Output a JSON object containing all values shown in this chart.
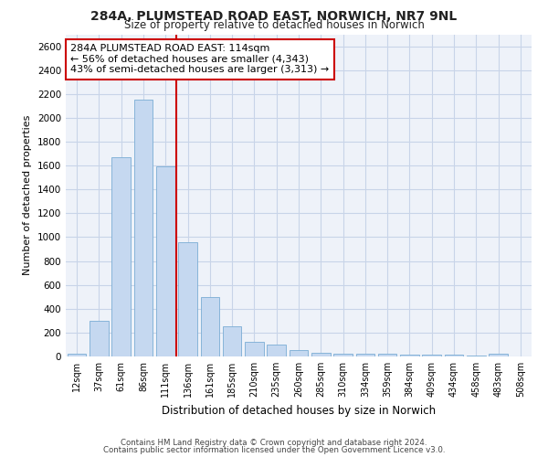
{
  "title1": "284A, PLUMSTEAD ROAD EAST, NORWICH, NR7 9NL",
  "title2": "Size of property relative to detached houses in Norwich",
  "xlabel": "Distribution of detached houses by size in Norwich",
  "ylabel": "Number of detached properties",
  "bar_labels": [
    "12sqm",
    "37sqm",
    "61sqm",
    "86sqm",
    "111sqm",
    "136sqm",
    "161sqm",
    "185sqm",
    "210sqm",
    "235sqm",
    "260sqm",
    "285sqm",
    "310sqm",
    "334sqm",
    "359sqm",
    "384sqm",
    "409sqm",
    "434sqm",
    "458sqm",
    "483sqm",
    "508sqm"
  ],
  "bar_values": [
    25,
    300,
    1670,
    2150,
    1590,
    960,
    500,
    250,
    120,
    100,
    50,
    30,
    20,
    20,
    20,
    15,
    15,
    15,
    5,
    25,
    0
  ],
  "bar_color": "#c5d8f0",
  "bar_edge_color": "#7aadd4",
  "grid_color": "#c8d4e8",
  "bg_color": "#eef2f9",
  "red_line_x": 4.5,
  "annotation_text": "284A PLUMSTEAD ROAD EAST: 114sqm\n← 56% of detached houses are smaller (4,343)\n43% of semi-detached houses are larger (3,313) →",
  "annotation_box_color": "#ffffff",
  "annotation_box_edge": "#cc0000",
  "red_line_color": "#cc0000",
  "footer1": "Contains HM Land Registry data © Crown copyright and database right 2024.",
  "footer2": "Contains public sector information licensed under the Open Government Licence v3.0.",
  "ylim": [
    0,
    2700
  ],
  "yticks": [
    0,
    200,
    400,
    600,
    800,
    1000,
    1200,
    1400,
    1600,
    1800,
    2000,
    2200,
    2400,
    2600
  ]
}
